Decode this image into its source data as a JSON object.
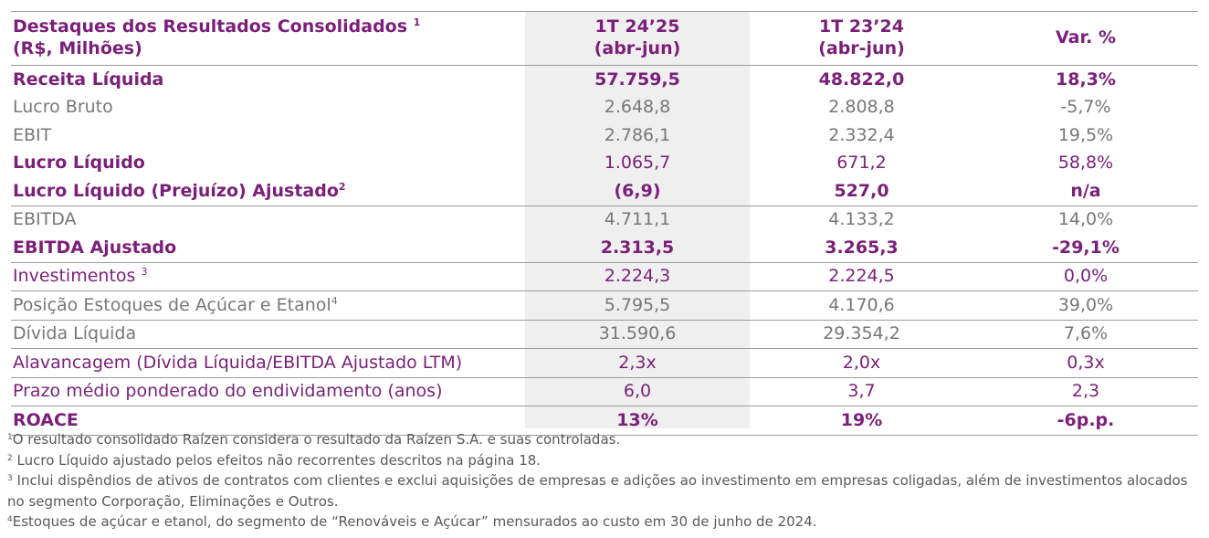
{
  "header": {
    "title_line1": "Destaques dos Resultados Consolidados",
    "title_sup": "1",
    "title_line2": "(R$, Milhões)",
    "col1_line1": "1T 24’25",
    "col1_line2": "(abr-jun)",
    "col2_line1": "1T 23’24",
    "col2_line2": "(abr-jun)",
    "col3": "Var. %"
  },
  "rows": [
    {
      "label": "Receita Líquida",
      "sup": "",
      "v1": "57.759,5",
      "v2": "48.822,0",
      "var": "18,3%"
    },
    {
      "label": "Lucro Bruto",
      "sup": "",
      "v1": "2.648,8",
      "v2": "2.808,8",
      "var": "-5,7%"
    },
    {
      "label": "EBIT",
      "sup": "",
      "v1": "2.786,1",
      "v2": "2.332,4",
      "var": "19,5%"
    },
    {
      "label": "Lucro Líquido",
      "sup": "",
      "v1": "1.065,7",
      "v2": "671,2",
      "var": "58,8%"
    },
    {
      "label": "Lucro Líquido (Prejuízo) Ajustado",
      "sup": "2",
      "v1": "(6,9)",
      "v2": "527,0",
      "var": "n/a"
    },
    {
      "label": "EBITDA",
      "sup": "",
      "v1": "4.711,1",
      "v2": "4.133,2",
      "var": "14,0%"
    },
    {
      "label": "EBITDA Ajustado",
      "sup": "",
      "v1": "2.313,5",
      "v2": "3.265,3",
      "var": "-29,1%"
    },
    {
      "label": "Investimentos",
      "sup": "3",
      "v1": "2.224,3",
      "v2": "2.224,5",
      "var": "0,0%"
    },
    {
      "label": "Posição Estoques de Açúcar e Etanol",
      "sup": "4",
      "v1": "5.795,5",
      "v2": "4.170,6",
      "var": "39,0%"
    },
    {
      "label": "Dívida Líquida",
      "sup": "",
      "v1": "31.590,6",
      "v2": "29.354,2",
      "var": "7,6%"
    },
    {
      "label": "Alavancagem (Dívida Líquida/EBITDA Ajustado LTM)",
      "sup": "",
      "v1": "2,3x",
      "v2": "2,0x",
      "var": "0,3x"
    },
    {
      "label": "Prazo médio ponderado do endividamento (anos)",
      "sup": "",
      "v1": "6,0",
      "v2": "3,7",
      "var": "2,3"
    },
    {
      "label": "ROACE",
      "sup": "",
      "v1": "13%",
      "v2": "19%",
      "var": "-6p.p."
    }
  ],
  "footnotes": [
    {
      "sup": "1",
      "text": "O resultado consolidado Raízen considera o resultado da Raízen S.A. e suas controladas."
    },
    {
      "sup": "2",
      "text": "Lucro Líquido ajustado pelos efeitos não recorrentes descritos na página 18."
    },
    {
      "sup": "3",
      "text": "Inclui dispêndios de ativos de contratos com clientes e exclui aquisições de empresas e adições ao investimento em empresas coligadas, além de investimentos alocados no segmento Corporação, Eliminações e Outros."
    },
    {
      "sup": "4",
      "text": "Estoques de açúcar e etanol, do segmento de “Renováveis e Açúcar” mensurados ao custo em 30 de junho de 2024."
    }
  ],
  "colors": {
    "accent": "#7b1f7a",
    "muted": "#777777",
    "shade": "#efefef"
  }
}
